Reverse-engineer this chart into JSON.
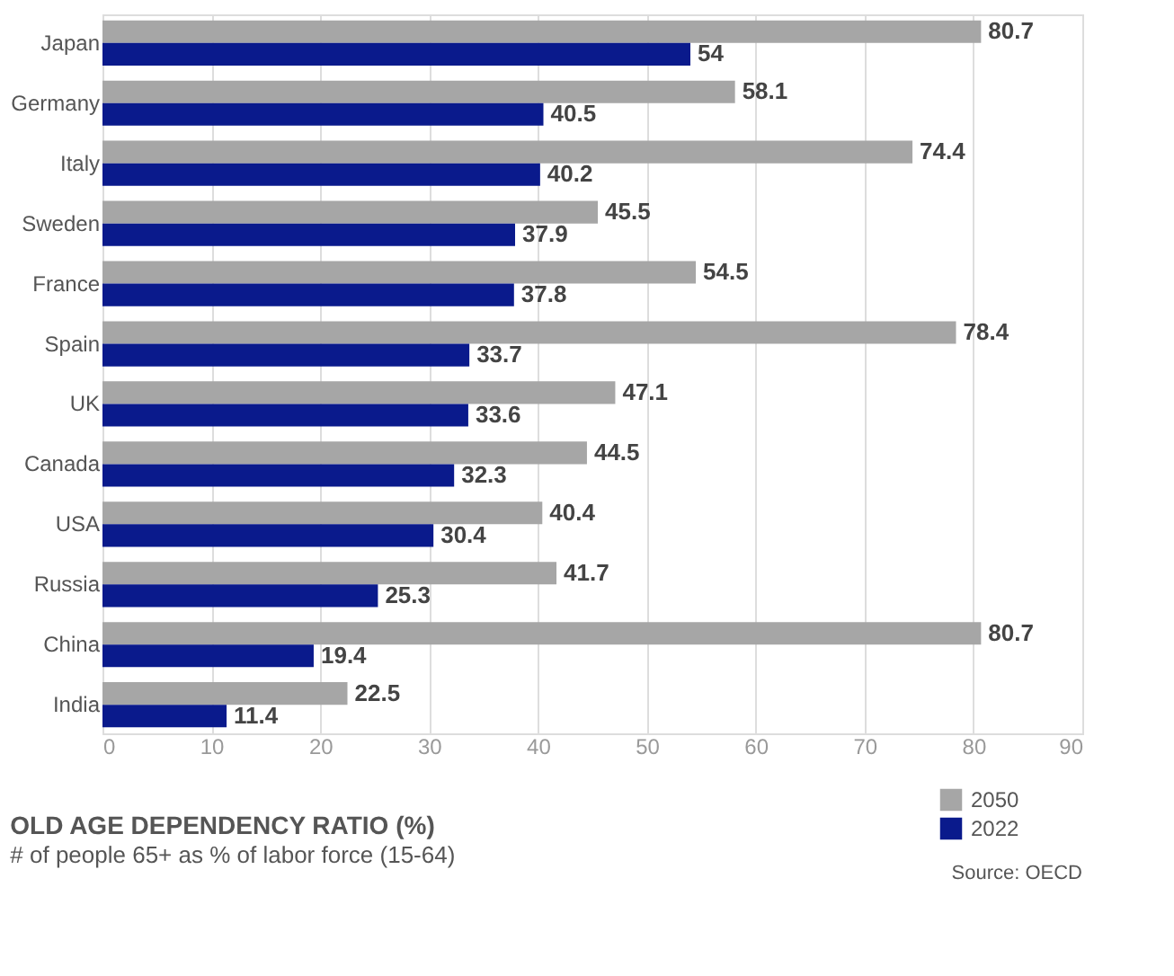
{
  "chart_data": {
    "type": "bar",
    "orientation": "horizontal",
    "title": "OLD AGE DEPENDENCY RATIO (%)",
    "subtitle": "# of people 65+ as % of labor force (15-64)",
    "categories": [
      "Japan",
      "Germany",
      "Italy",
      "Sweden",
      "France",
      "Spain",
      "UK",
      "Canada",
      "USA",
      "Russia",
      "China",
      "India"
    ],
    "series": [
      {
        "name": "2050",
        "color": "#a6a6a6",
        "values": [
          80.7,
          58.1,
          74.4,
          45.5,
          54.5,
          78.4,
          47.1,
          44.5,
          40.4,
          41.7,
          80.7,
          22.5
        ]
      },
      {
        "name": "2022",
        "color": "#0a1a8c",
        "values": [
          54,
          40.5,
          40.2,
          37.9,
          37.8,
          33.7,
          33.6,
          32.3,
          30.4,
          25.3,
          19.4,
          11.4
        ]
      }
    ],
    "xlim": [
      0,
      90
    ],
    "xticks": [
      0,
      10,
      20,
      30,
      40,
      50,
      60,
      70,
      80,
      90
    ],
    "grid": "x",
    "legend": "bottom right",
    "data_labels": true,
    "annotations": [
      "Source:  OECD"
    ]
  }
}
